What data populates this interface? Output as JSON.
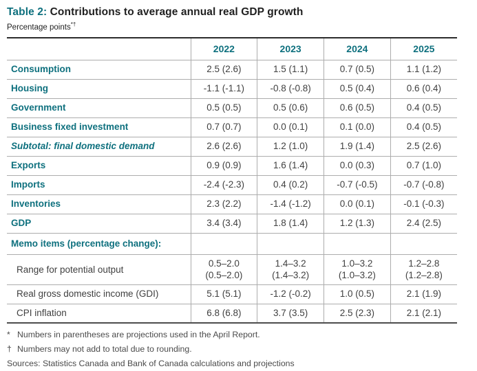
{
  "colors": {
    "accent_teal": "#0e707e"
  },
  "title": {
    "prefix": "Table 2:",
    "text": " Contributions to average annual real GDP growth"
  },
  "subtitle": {
    "text": "Percentage points",
    "markers": "*†"
  },
  "table": {
    "columns": [
      "2022",
      "2023",
      "2024",
      "2025"
    ],
    "rows": [
      {
        "label": "Consumption",
        "style": "main",
        "values": [
          "2.5 (2.6)",
          "1.5 (1.1)",
          "0.7 (0.5)",
          "1.1 (1.2)"
        ]
      },
      {
        "label": "Housing",
        "style": "main",
        "values": [
          "-1.1 (-1.1)",
          "-0.8 (-0.8)",
          "0.5 (0.4)",
          "0.6 (0.4)"
        ]
      },
      {
        "label": "Government",
        "style": "main",
        "values": [
          "0.5 (0.5)",
          "0.5 (0.6)",
          "0.6 (0.5)",
          "0.4 (0.5)"
        ]
      },
      {
        "label": "Business fixed investment",
        "style": "main",
        "values": [
          "0.7 (0.7)",
          "0.0 (0.1)",
          "0.1 (0.0)",
          "0.4 (0.5)"
        ]
      },
      {
        "label": "Subtotal: final domestic demand",
        "style": "subtotal",
        "values": [
          "2.6 (2.6)",
          "1.2 (1.0)",
          "1.9 (1.4)",
          "2.5 (2.6)"
        ]
      },
      {
        "label": "Exports",
        "style": "main",
        "values": [
          "0.9 (0.9)",
          "1.6 (1.4)",
          "0.0 (0.3)",
          "0.7 (1.0)"
        ]
      },
      {
        "label": "Imports",
        "style": "main",
        "values": [
          "-2.4 (-2.3)",
          "0.4 (0.2)",
          "-0.7 (-0.5)",
          "-0.7 (-0.8)"
        ]
      },
      {
        "label": "Inventories",
        "style": "main",
        "values": [
          "2.3 (2.2)",
          "-1.4 (-1.2)",
          "0.0 (0.1)",
          "-0.1 (-0.3)"
        ]
      },
      {
        "label": "GDP",
        "style": "main",
        "values": [
          "3.4 (3.4)",
          "1.8 (1.4)",
          "1.2 (1.3)",
          "2.4 (2.5)"
        ]
      },
      {
        "label": "Memo items (percentage change):",
        "style": "section",
        "values": [
          "",
          "",
          "",
          ""
        ]
      },
      {
        "label": "Range for potential output",
        "style": "memo",
        "values": [
          "0.5–2.0\n(0.5–2.0)",
          "1.4–3.2\n(1.4–3.2)",
          "1.0–3.2\n(1.0–3.2)",
          "1.2–2.8\n(1.2–2.8)"
        ]
      },
      {
        "label": "Real gross domestic income (GDI)",
        "style": "memo",
        "values": [
          "5.1 (5.1)",
          "-1.2 (-0.2)",
          "1.0 (0.5)",
          "2.1 (1.9)"
        ]
      },
      {
        "label": "CPI inflation",
        "style": "memo",
        "values": [
          "6.8 (6.8)",
          "3.7 (3.5)",
          "2.5 (2.3)",
          "2.1 (2.1)"
        ]
      }
    ]
  },
  "footnotes": [
    {
      "marker": "*",
      "text": "Numbers in parentheses are projections used in the April Report."
    },
    {
      "marker": "†",
      "text": "Numbers may not add to total due to rounding."
    }
  ],
  "sources": "Sources: Statistics Canada and Bank of Canada calculations and projections"
}
